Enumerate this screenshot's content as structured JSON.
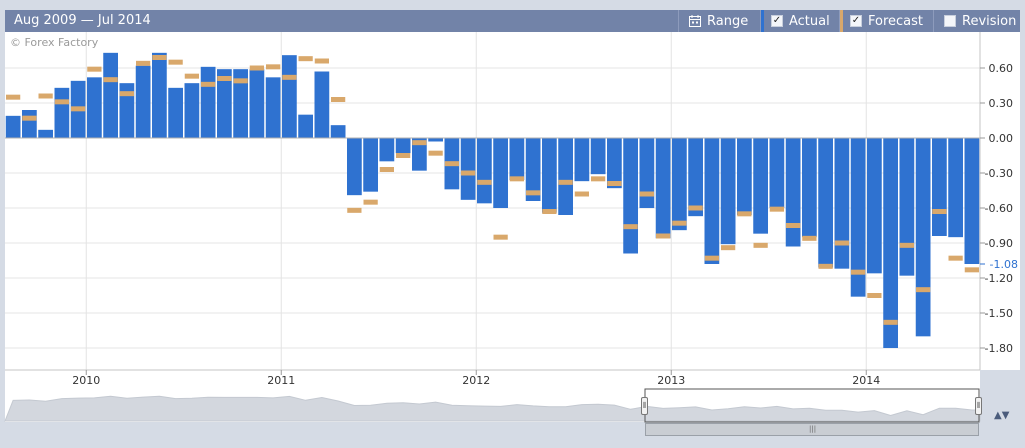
{
  "toolbar": {
    "range_text": "Aug 2009 — Jul 2014",
    "range_button": "Range",
    "actual_button": "Actual",
    "forecast_button": "Forecast",
    "revision_button": "Revision",
    "actual_checked": true,
    "forecast_checked": true,
    "revision_checked": false,
    "check_mark": "✓",
    "range_icon": "calendar-icon",
    "nav_grip": "⦀",
    "scroll_grip": "|||",
    "scroll_arrows": "▲▼"
  },
  "watermark": "© Forex Factory",
  "colors": {
    "actual": "#2f72d0",
    "forecast": "#d9a86b",
    "background": "#ffffff",
    "grid": "#e4e4e4",
    "header": "#7283a8",
    "last_value": "#2f72d0",
    "navigator_fill": "#d3d7de"
  },
  "chart_data": {
    "type": "bar",
    "title": "",
    "xlabel": "",
    "ylabel": "",
    "ylim": [
      -2.0,
      0.9
    ],
    "yticks": [
      0.6,
      0.3,
      0.0,
      -0.3,
      -0.6,
      -0.9,
      -1.2,
      -1.5,
      -1.8
    ],
    "ytick_labels": [
      "0.60",
      "0.30",
      "0.00",
      "-0.30",
      "-0.60",
      "-0.90",
      "-1.20",
      "-1.50",
      "-1.80"
    ],
    "xtick_labels": [
      "2010",
      "2011",
      "2012",
      "2013",
      "2014"
    ],
    "xtick_dates": [
      "2010-01",
      "2011-01",
      "2012-01",
      "2013-01",
      "2014-01"
    ],
    "last_value_label": "-1.08",
    "legend": "top-right",
    "grid": true,
    "categories": [
      "2009-08",
      "2009-09",
      "2009-10",
      "2009-11",
      "2009-12",
      "2010-01",
      "2010-02",
      "2010-03",
      "2010-04",
      "2010-05",
      "2010-06",
      "2010-07",
      "2010-08",
      "2010-09",
      "2010-10",
      "2010-11",
      "2010-12",
      "2011-01",
      "2011-02",
      "2011-03",
      "2011-04",
      "2011-05",
      "2011-06",
      "2011-07",
      "2011-08",
      "2011-09",
      "2011-10",
      "2011-11",
      "2011-12",
      "2012-01",
      "2012-02",
      "2012-03",
      "2012-04",
      "2012-05",
      "2012-06",
      "2012-07",
      "2012-08",
      "2012-09",
      "2012-10",
      "2012-11",
      "2012-12",
      "2013-01",
      "2013-02",
      "2013-03",
      "2013-04",
      "2013-05",
      "2013-06",
      "2013-07",
      "2013-08",
      "2013-09",
      "2013-10",
      "2013-11",
      "2013-12",
      "2014-01",
      "2014-02",
      "2014-03",
      "2014-04",
      "2014-05",
      "2014-06",
      "2014-07"
    ],
    "series": [
      {
        "name": "Actual",
        "values": [
          0.19,
          0.24,
          0.07,
          0.43,
          0.49,
          0.52,
          0.73,
          0.47,
          0.62,
          0.73,
          0.43,
          0.47,
          0.61,
          0.59,
          0.59,
          0.59,
          0.52,
          0.71,
          0.2,
          0.57,
          0.11,
          -0.49,
          -0.46,
          -0.2,
          -0.13,
          -0.28,
          -0.03,
          -0.44,
          -0.53,
          -0.56,
          -0.6,
          -0.36,
          -0.54,
          -0.64,
          -0.66,
          -0.37,
          -0.31,
          -0.43,
          -0.99,
          -0.6,
          -0.86,
          -0.79,
          -0.67,
          -1.08,
          -0.91,
          -0.66,
          -0.82,
          -0.6,
          -0.93,
          -0.85,
          -1.11,
          -1.12,
          -1.36,
          -1.16,
          -1.8,
          -1.18,
          -1.7,
          -0.84,
          -0.85,
          -1.08
        ]
      },
      {
        "name": "Forecast",
        "values": [
          0.35,
          0.17,
          0.36,
          0.31,
          0.25,
          0.59,
          0.5,
          0.38,
          0.64,
          0.69,
          0.65,
          0.53,
          0.46,
          0.51,
          0.49,
          0.6,
          0.61,
          0.52,
          0.68,
          0.66,
          0.33,
          -0.62,
          -0.55,
          -0.27,
          -0.15,
          -0.04,
          -0.13,
          -0.22,
          -0.3,
          -0.38,
          -0.85,
          -0.35,
          -0.47,
          -0.63,
          -0.38,
          -0.48,
          -0.35,
          -0.39,
          -0.76,
          -0.48,
          -0.84,
          -0.73,
          -0.6,
          -1.03,
          -0.94,
          -0.65,
          -0.92,
          -0.61,
          -0.75,
          -0.86,
          -1.1,
          -0.9,
          -1.15,
          -1.35,
          -1.58,
          -0.92,
          -1.3,
          -0.63,
          -1.03,
          -1.13
        ]
      }
    ],
    "navigator": {
      "window": [
        "2009-08",
        "2014-07"
      ]
    }
  }
}
